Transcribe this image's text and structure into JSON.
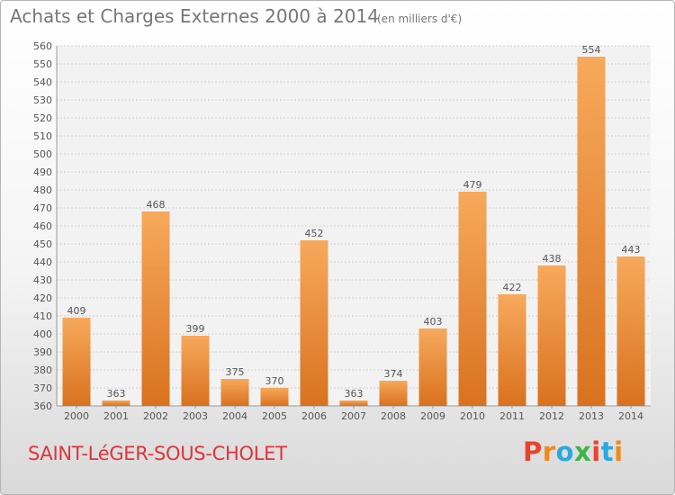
{
  "title": "Achats et Charges Externes 2000 à 2014",
  "unit": "(en milliers d'€)",
  "commune": "SAINT-LéGER-SOUS-CHOLET",
  "brand": {
    "text": "Proxiti",
    "colors": [
      "#e8432c",
      "#f08a1c",
      "#27a9e1",
      "#3db54a",
      "#e8432c",
      "#27a9e1",
      "#f08a1c"
    ]
  },
  "colors": {
    "bar_light": "#f7a95c",
    "bar_dark": "#d9721f",
    "grid": "#cfcfcf",
    "text": "#555555",
    "commune": "#e0343a"
  },
  "chart_data": {
    "type": "bar",
    "categories": [
      "2000",
      "2001",
      "2002",
      "2003",
      "2004",
      "2005",
      "2006",
      "2007",
      "2008",
      "2009",
      "2010",
      "2011",
      "2012",
      "2013",
      "2014"
    ],
    "values": [
      409,
      363,
      468,
      399,
      375,
      370,
      452,
      363,
      374,
      403,
      479,
      422,
      438,
      554,
      443
    ],
    "ylim": [
      360,
      560
    ],
    "ytick_step": 10,
    "grid": true,
    "xlabel": "",
    "ylabel": ""
  }
}
